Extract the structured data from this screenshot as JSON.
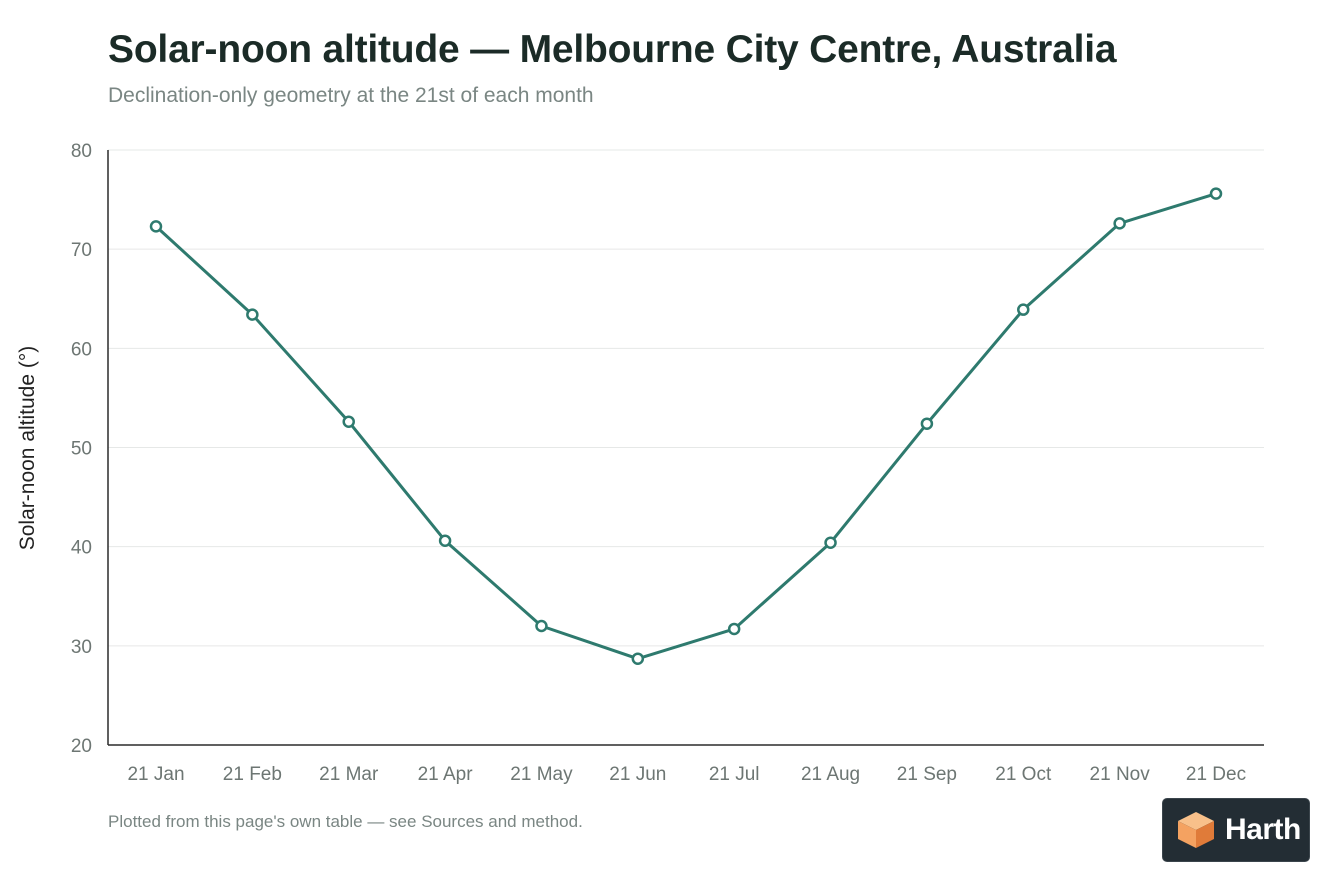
{
  "chart_data": {
    "type": "line",
    "title": "Solar-noon altitude — Melbourne City Centre, Australia",
    "subtitle": "Declination-only geometry at the 21st of each month",
    "xlabel": "",
    "ylabel": "Solar-noon altitude (°)",
    "categories": [
      "21 Jan",
      "21 Feb",
      "21 Mar",
      "21 Apr",
      "21 May",
      "21 Jun",
      "21 Jul",
      "21 Aug",
      "21 Sep",
      "21 Oct",
      "21 Nov",
      "21 Dec"
    ],
    "series": [
      {
        "values": [
          72.3,
          63.4,
          52.6,
          40.6,
          32.0,
          28.7,
          31.7,
          40.4,
          52.4,
          63.9,
          72.6,
          75.6
        ]
      }
    ],
    "ylim": [
      20,
      80
    ],
    "yticks": [
      "20",
      "30",
      "40",
      "50",
      "60",
      "70",
      "80"
    ],
    "grid": true,
    "legend": "none",
    "colors": {
      "line": "#2e7a6e",
      "marker_fill": "#ffffff",
      "grid": "#e6e8e7",
      "axis": "#2b2b2b",
      "tick_text": "#6d7673"
    }
  },
  "footnote": "Plotted from this page's own table — see Sources and method.",
  "brand": {
    "name": "Harth",
    "logo_icon": "cube-logo-icon",
    "background": "#232d34",
    "logo_color": "#f4a261"
  }
}
